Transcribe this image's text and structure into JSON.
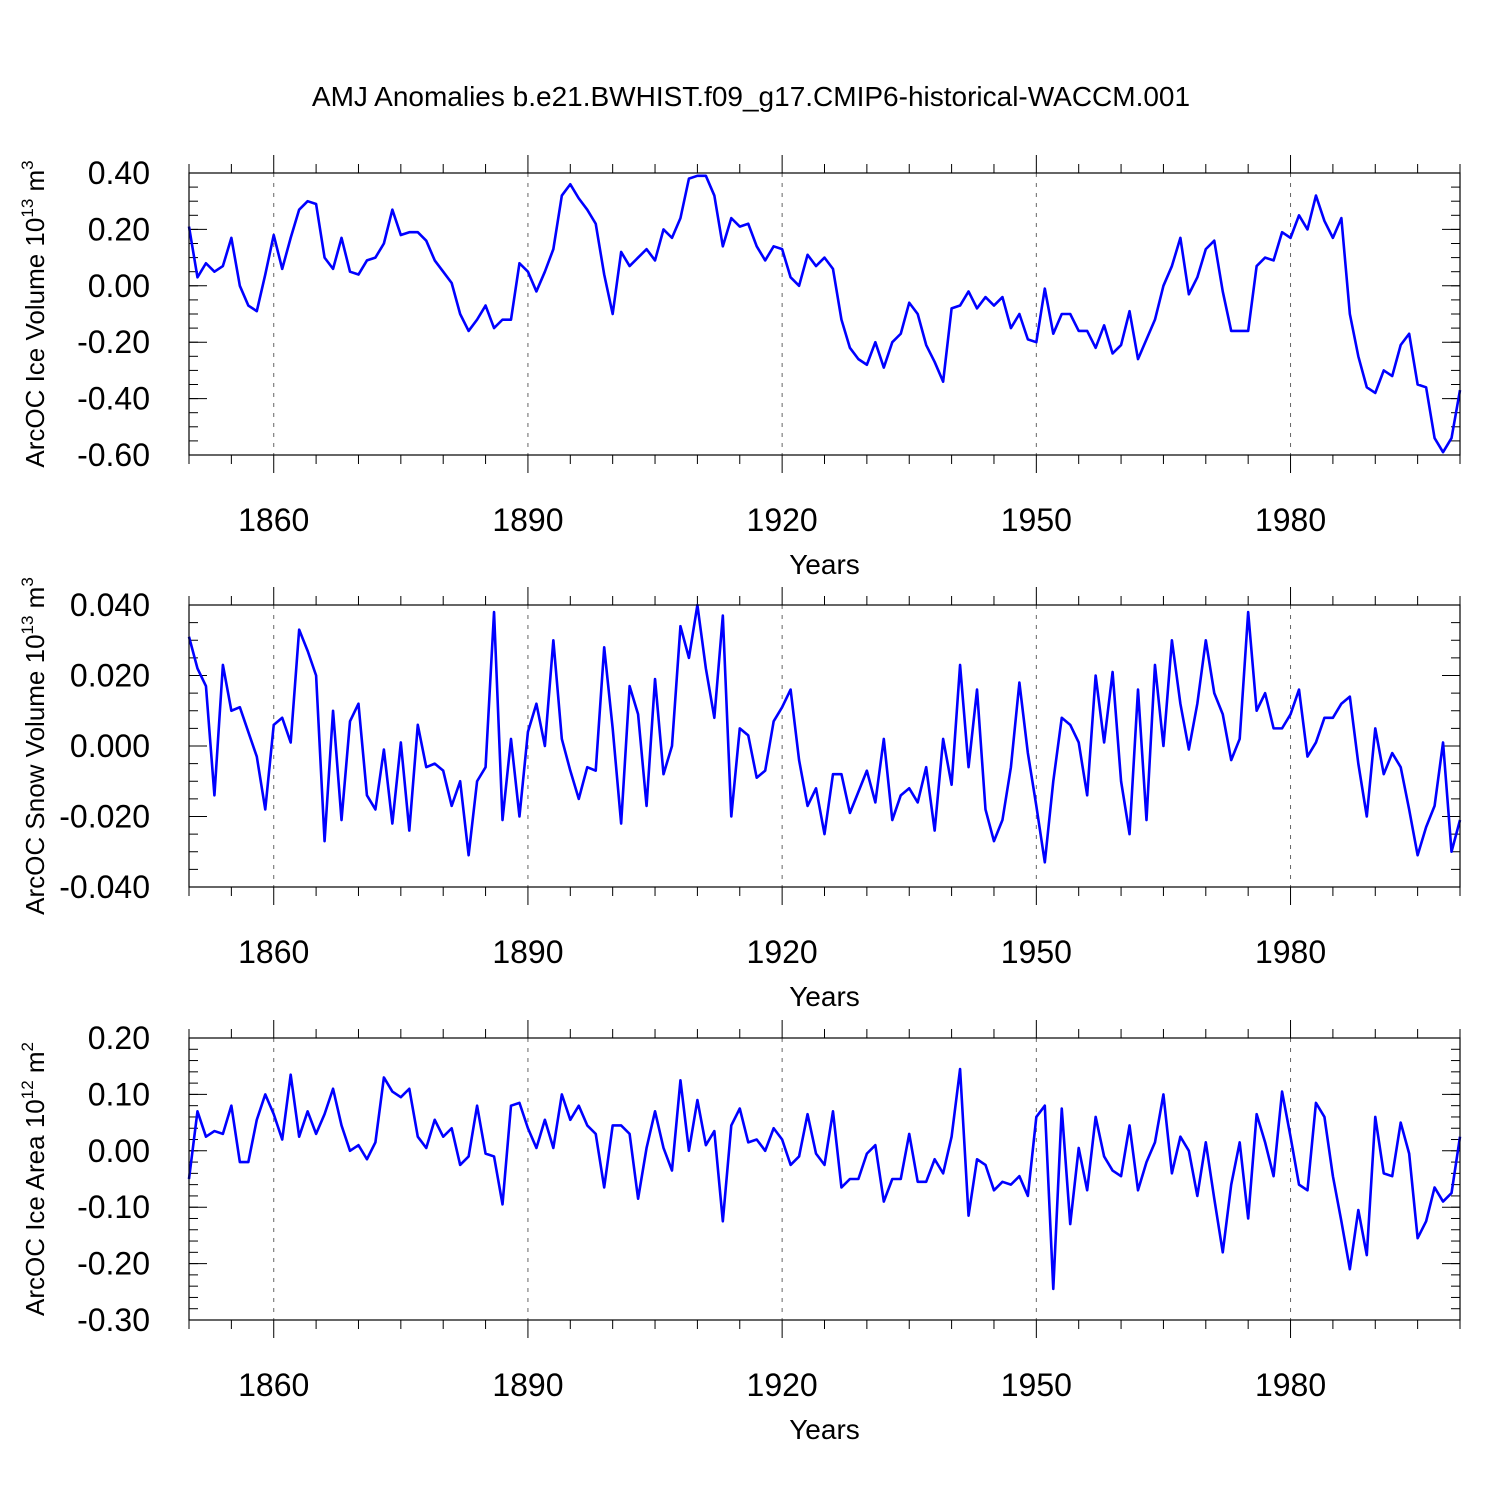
{
  "chart_data": {
    "title": "AMJ Anomalies b.e21.BWHIST.f09_g17.CMIP6-historical-WACCM.001",
    "panels": [
      {
        "type": "line",
        "ylabel": {
          "text": "ArcOC Ice Volume 10",
          "exp": "13",
          "unit": " m",
          "unit_exp": "3"
        },
        "xlabel": "Years",
        "xlim": [
          1850,
          2000
        ],
        "x_ticks": [
          1860,
          1890,
          1920,
          1950,
          1980
        ],
        "x_tick_labels": [
          "1860",
          "1890",
          "1920",
          "1950",
          "1980"
        ],
        "ylim": [
          -0.6,
          0.4
        ],
        "y_ticks": [
          -0.6,
          -0.4,
          -0.2,
          0.0,
          0.2,
          0.4
        ],
        "y_tick_labels": [
          "-0.60",
          "-0.40",
          "-0.20",
          "0.00",
          "0.20",
          "0.40"
        ],
        "y_minor_step": 0.05,
        "grid": "vertical dashed at x ticks",
        "series": [
          {
            "name": "ArcOC Ice Volume",
            "color": "#0000ff",
            "x_start": 1850,
            "values": [
              0.21,
              0.03,
              0.08,
              0.05,
              0.07,
              0.17,
              0.0,
              -0.07,
              -0.09,
              0.04,
              0.18,
              0.06,
              0.17,
              0.27,
              0.3,
              0.29,
              0.1,
              0.06,
              0.17,
              0.05,
              0.04,
              0.09,
              0.1,
              0.15,
              0.27,
              0.18,
              0.19,
              0.19,
              0.16,
              0.09,
              0.05,
              0.01,
              -0.1,
              -0.16,
              -0.12,
              -0.07,
              -0.15,
              -0.12,
              -0.12,
              0.08,
              0.05,
              -0.02,
              0.05,
              0.13,
              0.32,
              0.36,
              0.31,
              0.27,
              0.22,
              0.04,
              -0.1,
              0.12,
              0.07,
              0.1,
              0.13,
              0.09,
              0.2,
              0.17,
              0.24,
              0.38,
              0.39,
              0.39,
              0.32,
              0.14,
              0.24,
              0.21,
              0.22,
              0.14,
              0.09,
              0.14,
              0.13,
              0.03,
              0.0,
              0.11,
              0.07,
              0.1,
              0.06,
              -0.12,
              -0.22,
              -0.26,
              -0.28,
              -0.2,
              -0.29,
              -0.2,
              -0.17,
              -0.06,
              -0.1,
              -0.21,
              -0.27,
              -0.34,
              -0.08,
              -0.07,
              -0.02,
              -0.08,
              -0.04,
              -0.07,
              -0.04,
              -0.15,
              -0.1,
              -0.19,
              -0.2,
              -0.01,
              -0.17,
              -0.1,
              -0.1,
              -0.16,
              -0.16,
              -0.22,
              -0.14,
              -0.24,
              -0.21,
              -0.09,
              -0.26,
              -0.19,
              -0.12,
              0.0,
              0.07,
              0.17,
              -0.03,
              0.03,
              0.13,
              0.16,
              -0.02,
              -0.16,
              -0.16,
              -0.16,
              0.07,
              0.1,
              0.09,
              0.19,
              0.17,
              0.25,
              0.2,
              0.32,
              0.23,
              0.17,
              0.24,
              -0.1,
              -0.25,
              -0.36,
              -0.38,
              -0.3,
              -0.32,
              -0.21,
              -0.17,
              -0.35,
              -0.36,
              -0.54,
              -0.59,
              -0.54,
              -0.37
            ]
          }
        ]
      },
      {
        "type": "line",
        "ylabel": {
          "text": "ArcOC Snow Volume 10",
          "exp": "13",
          "unit": " m",
          "unit_exp": "3"
        },
        "xlabel": "Years",
        "xlim": [
          1850,
          2000
        ],
        "x_ticks": [
          1860,
          1890,
          1920,
          1950,
          1980
        ],
        "x_tick_labels": [
          "1860",
          "1890",
          "1920",
          "1950",
          "1980"
        ],
        "ylim": [
          -0.04,
          0.04
        ],
        "y_ticks": [
          -0.04,
          -0.02,
          0.0,
          0.02,
          0.04
        ],
        "y_tick_labels": [
          "-0.040",
          "-0.020",
          "0.000",
          "0.020",
          "0.040"
        ],
        "y_minor_step": 0.005,
        "grid": "vertical dashed at x ticks",
        "series": [
          {
            "name": "ArcOC Snow Volume",
            "color": "#0000ff",
            "x_start": 1850,
            "values": [
              0.031,
              0.022,
              0.017,
              -0.014,
              0.023,
              0.01,
              0.011,
              0.004,
              -0.003,
              -0.018,
              0.006,
              0.008,
              0.001,
              0.033,
              0.027,
              0.02,
              -0.027,
              0.01,
              -0.021,
              0.007,
              0.012,
              -0.014,
              -0.018,
              -0.001,
              -0.022,
              0.001,
              -0.024,
              0.006,
              -0.006,
              -0.005,
              -0.007,
              -0.017,
              -0.01,
              -0.031,
              -0.01,
              -0.006,
              0.038,
              -0.021,
              0.002,
              -0.02,
              0.004,
              0.012,
              0.0,
              0.03,
              0.002,
              -0.007,
              -0.015,
              -0.006,
              -0.007,
              0.028,
              0.005,
              -0.022,
              0.017,
              0.009,
              -0.017,
              0.019,
              -0.008,
              0.0,
              0.034,
              0.025,
              0.04,
              0.022,
              0.008,
              0.037,
              -0.02,
              0.005,
              0.003,
              -0.009,
              -0.007,
              0.007,
              0.011,
              0.016,
              -0.004,
              -0.017,
              -0.012,
              -0.025,
              -0.008,
              -0.008,
              -0.019,
              -0.013,
              -0.007,
              -0.016,
              0.002,
              -0.021,
              -0.014,
              -0.012,
              -0.016,
              -0.006,
              -0.024,
              0.002,
              -0.011,
              0.023,
              -0.006,
              0.016,
              -0.018,
              -0.027,
              -0.021,
              -0.006,
              0.018,
              -0.002,
              -0.017,
              -0.033,
              -0.01,
              0.008,
              0.006,
              0.001,
              -0.014,
              0.02,
              0.001,
              0.021,
              -0.01,
              -0.025,
              0.016,
              -0.021,
              0.023,
              0.0,
              0.03,
              0.012,
              -0.001,
              0.012,
              0.03,
              0.015,
              0.009,
              -0.004,
              0.002,
              0.038,
              0.01,
              0.015,
              0.005,
              0.005,
              0.009,
              0.016,
              -0.003,
              0.001,
              0.008,
              0.008,
              0.012,
              0.014,
              -0.005,
              -0.02,
              0.005,
              -0.008,
              -0.002,
              -0.006,
              -0.018,
              -0.031,
              -0.023,
              -0.017,
              0.001,
              -0.03,
              -0.021
            ]
          }
        ]
      },
      {
        "type": "line",
        "ylabel": {
          "text": "ArcOC Ice Area 10",
          "exp": "12",
          "unit": " m",
          "unit_exp": "2"
        },
        "xlabel": "Years",
        "xlim": [
          1850,
          2000
        ],
        "x_ticks": [
          1860,
          1890,
          1920,
          1950,
          1980
        ],
        "x_tick_labels": [
          "1860",
          "1890",
          "1920",
          "1950",
          "1980"
        ],
        "ylim": [
          -0.3,
          0.2
        ],
        "y_ticks": [
          -0.3,
          -0.2,
          -0.1,
          0.0,
          0.1,
          0.2
        ],
        "y_tick_labels": [
          "-0.30",
          "-0.20",
          "-0.10",
          "0.00",
          "0.10",
          "0.20"
        ],
        "y_minor_step": 0.02,
        "grid": "vertical dashed at x ticks",
        "series": [
          {
            "name": "ArcOC Ice Area",
            "color": "#0000ff",
            "x_start": 1850,
            "values": [
              -0.05,
              0.07,
              0.025,
              0.035,
              0.03,
              0.08,
              -0.02,
              -0.02,
              0.055,
              0.1,
              0.065,
              0.02,
              0.135,
              0.025,
              0.07,
              0.03,
              0.065,
              0.11,
              0.045,
              0.0,
              0.01,
              -0.015,
              0.015,
              0.13,
              0.105,
              0.095,
              0.11,
              0.025,
              0.005,
              0.055,
              0.025,
              0.04,
              -0.025,
              -0.01,
              0.08,
              -0.005,
              -0.01,
              -0.095,
              0.08,
              0.085,
              0.04,
              0.005,
              0.055,
              0.005,
              0.1,
              0.055,
              0.08,
              0.045,
              0.03,
              -0.065,
              0.045,
              0.045,
              0.03,
              -0.085,
              0.005,
              0.07,
              0.005,
              -0.035,
              0.125,
              0.0,
              0.09,
              0.01,
              0.035,
              -0.125,
              0.045,
              0.075,
              0.015,
              0.02,
              0.0,
              0.04,
              0.02,
              -0.025,
              -0.01,
              0.065,
              -0.005,
              -0.025,
              0.07,
              -0.065,
              -0.05,
              -0.05,
              -0.005,
              0.01,
              -0.09,
              -0.05,
              -0.05,
              0.03,
              -0.055,
              -0.055,
              -0.015,
              -0.04,
              0.025,
              0.145,
              -0.115,
              -0.015,
              -0.025,
              -0.07,
              -0.055,
              -0.06,
              -0.045,
              -0.08,
              0.06,
              0.08,
              -0.245,
              0.075,
              -0.13,
              0.005,
              -0.07,
              0.06,
              -0.01,
              -0.035,
              -0.045,
              0.045,
              -0.07,
              -0.02,
              0.015,
              0.1,
              -0.04,
              0.025,
              0.0,
              -0.08,
              0.015,
              -0.085,
              -0.18,
              -0.06,
              0.015,
              -0.12,
              0.065,
              0.015,
              -0.045,
              0.105,
              0.025,
              -0.06,
              -0.07,
              0.085,
              0.06,
              -0.045,
              -0.125,
              -0.21,
              -0.105,
              -0.185,
              0.06,
              -0.04,
              -0.045,
              0.05,
              -0.005,
              -0.155,
              -0.125,
              -0.065,
              -0.09,
              -0.075,
              0.025
            ]
          }
        ]
      }
    ]
  }
}
